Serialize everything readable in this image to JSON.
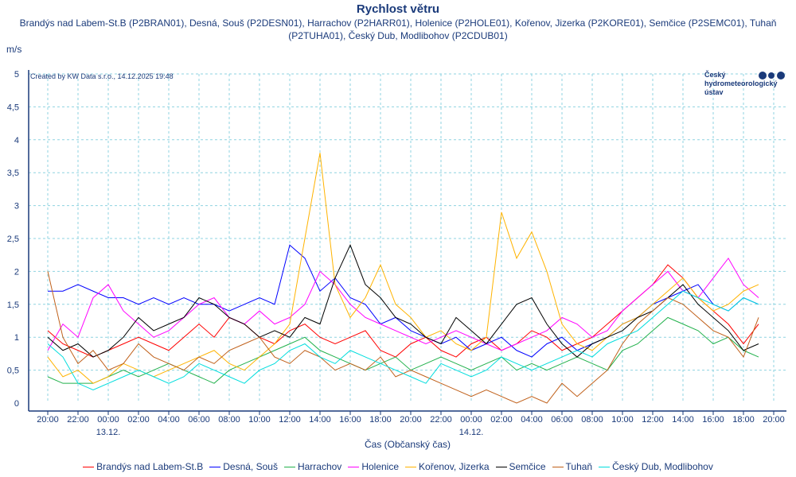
{
  "chart_data": {
    "type": "line",
    "title": "Rychlost větru",
    "subtitle": "Brandýs nad Labem-St.B (P2BRAN01), Desná, Souš (P2DESN01), Harrachov (P2HARR01), Holenice (P2HOLE01), Kořenov, Jizerka (P2KORE01), Semčice (P2SEMC01), Tuhaň (P2TUHA01), Český Dub, Modlibohov (P2CDUB01)",
    "ylabel": "m/s",
    "xlabel": "Čas (Občanský čas)",
    "credit": "Created by KW Data s.r.o., 14.12.2025 19:48",
    "logo_text": [
      "Český",
      "hydrometeorologický",
      "ústav"
    ],
    "ylim": [
      0,
      5
    ],
    "yticks": [
      "0",
      "0,5",
      "1",
      "1,5",
      "2",
      "2,5",
      "3",
      "3,5",
      "4",
      "4,5",
      "5"
    ],
    "xticks": [
      "20:00",
      "22:00",
      "00:00",
      "02:00",
      "04:00",
      "06:00",
      "08:00",
      "10:00",
      "12:00",
      "14:00",
      "16:00",
      "18:00",
      "20:00",
      "22:00",
      "00:00",
      "02:00",
      "04:00",
      "06:00",
      "08:00",
      "10:00",
      "12:00",
      "14:00",
      "16:00",
      "18:00",
      "20:00"
    ],
    "date_labels": [
      {
        "tick": "00:00",
        "index": 2,
        "label": "13.12."
      },
      {
        "tick": "00:00",
        "index": 14,
        "label": "14.12."
      }
    ],
    "x_hours_from_start": "hourly from 12.12. 20:00",
    "grid": true,
    "legend_position": "bottom",
    "series": [
      {
        "name": "Brandýs nad Labem-St.B",
        "color": "#ff0000",
        "values": [
          1.1,
          0.9,
          0.8,
          0.7,
          0.8,
          0.9,
          1.0,
          0.9,
          0.8,
          1.0,
          1.2,
          1.0,
          1.3,
          1.2,
          1.0,
          0.9,
          1.1,
          1.2,
          1.0,
          0.9,
          1.0,
          1.1,
          0.8,
          0.7,
          0.9,
          1.0,
          0.8,
          0.7,
          0.9,
          1.0,
          0.8,
          0.9,
          1.1,
          1.0,
          0.8,
          0.9,
          1.0,
          1.2,
          1.4,
          1.6,
          1.8,
          2.1,
          1.9,
          1.6,
          1.4,
          1.2,
          0.9,
          1.2
        ]
      },
      {
        "name": "Desná, Souš",
        "color": "#0000ff",
        "values": [
          1.7,
          1.7,
          1.8,
          1.7,
          1.6,
          1.6,
          1.5,
          1.6,
          1.5,
          1.6,
          1.5,
          1.5,
          1.4,
          1.5,
          1.6,
          1.5,
          2.4,
          2.2,
          1.7,
          1.9,
          1.6,
          1.5,
          1.2,
          1.3,
          1.1,
          1.0,
          0.9,
          1.0,
          0.8,
          0.9,
          1.0,
          0.8,
          0.7,
          0.9,
          1.0,
          0.8,
          0.9,
          1.0,
          1.2,
          1.3,
          1.5,
          1.6,
          1.7,
          1.8,
          1.5,
          1.4,
          1.6,
          1.5
        ]
      },
      {
        "name": "Harrachov",
        "color": "#22b14c",
        "values": [
          0.4,
          0.3,
          0.3,
          0.3,
          0.4,
          0.5,
          0.4,
          0.5,
          0.6,
          0.5,
          0.4,
          0.3,
          0.5,
          0.6,
          0.7,
          0.8,
          0.9,
          1.0,
          0.8,
          0.7,
          0.6,
          0.5,
          0.6,
          0.7,
          0.5,
          0.6,
          0.7,
          0.6,
          0.5,
          0.6,
          0.7,
          0.5,
          0.6,
          0.5,
          0.6,
          0.7,
          0.6,
          0.5,
          0.8,
          0.9,
          1.1,
          1.3,
          1.2,
          1.1,
          0.9,
          1.0,
          0.8,
          0.7
        ]
      },
      {
        "name": "Holenice",
        "color": "#ff00ff",
        "values": [
          0.8,
          1.2,
          1.0,
          1.6,
          1.8,
          1.4,
          1.2,
          1.0,
          1.1,
          1.3,
          1.5,
          1.6,
          1.3,
          1.2,
          1.4,
          1.2,
          1.3,
          1.5,
          2.0,
          1.8,
          1.5,
          1.3,
          1.2,
          1.1,
          1.0,
          0.9,
          1.0,
          1.1,
          1.0,
          0.9,
          0.8,
          0.9,
          1.0,
          1.1,
          1.3,
          1.2,
          1.0,
          1.1,
          1.4,
          1.6,
          1.8,
          2.0,
          1.7,
          1.6,
          1.9,
          2.2,
          1.8,
          1.6
        ]
      },
      {
        "name": "Kořenov, Jizerka",
        "color": "#ffb300",
        "values": [
          0.7,
          0.4,
          0.5,
          0.3,
          0.4,
          0.6,
          0.5,
          0.4,
          0.5,
          0.6,
          0.7,
          0.8,
          0.6,
          0.5,
          0.7,
          0.9,
          1.2,
          2.5,
          3.8,
          1.8,
          1.3,
          1.6,
          2.1,
          1.5,
          1.3,
          1.0,
          1.1,
          0.9,
          0.8,
          1.0,
          2.9,
          2.2,
          2.6,
          2.0,
          1.2,
          0.9,
          0.8,
          1.0,
          1.2,
          1.3,
          1.5,
          1.7,
          1.9,
          1.6,
          1.4,
          1.5,
          1.7,
          1.8
        ]
      },
      {
        "name": "Semčice",
        "color": "#000000",
        "values": [
          1.0,
          0.8,
          0.9,
          0.7,
          0.8,
          1.0,
          1.3,
          1.1,
          1.2,
          1.3,
          1.6,
          1.5,
          1.3,
          1.2,
          1.0,
          1.1,
          1.0,
          1.3,
          1.2,
          1.9,
          2.4,
          1.8,
          1.6,
          1.3,
          1.2,
          1.0,
          0.9,
          1.3,
          1.1,
          0.9,
          1.2,
          1.5,
          1.6,
          1.2,
          0.9,
          0.7,
          0.9,
          1.0,
          1.1,
          1.3,
          1.4,
          1.6,
          1.8,
          1.5,
          1.3,
          1.1,
          0.8,
          0.9
        ]
      },
      {
        "name": "Tuhaň",
        "color": "#c0601a",
        "values": [
          2.0,
          1.0,
          0.6,
          0.8,
          0.5,
          0.6,
          0.9,
          0.7,
          0.6,
          0.5,
          0.7,
          0.6,
          0.8,
          0.9,
          1.0,
          0.7,
          0.6,
          0.8,
          0.7,
          0.5,
          0.6,
          0.5,
          0.7,
          0.4,
          0.5,
          0.4,
          0.3,
          0.2,
          0.1,
          0.2,
          0.1,
          0.0,
          0.1,
          0.0,
          0.3,
          0.1,
          0.3,
          0.5,
          0.9,
          1.2,
          1.4,
          1.6,
          1.5,
          1.3,
          1.1,
          1.0,
          0.7,
          1.3
        ]
      },
      {
        "name": "Český Dub, Modlibohov",
        "color": "#00dddd",
        "values": [
          0.9,
          0.7,
          0.3,
          0.2,
          0.3,
          0.4,
          0.5,
          0.4,
          0.3,
          0.4,
          0.6,
          0.5,
          0.4,
          0.3,
          0.5,
          0.6,
          0.8,
          0.9,
          0.7,
          0.6,
          0.8,
          0.7,
          0.6,
          0.5,
          0.4,
          0.3,
          0.6,
          0.5,
          0.4,
          0.5,
          0.7,
          0.6,
          0.5,
          0.6,
          0.7,
          0.8,
          0.7,
          0.9,
          1.0,
          1.1,
          1.3,
          1.5,
          1.7,
          1.6,
          1.5,
          1.4,
          1.6,
          1.5
        ]
      }
    ]
  }
}
